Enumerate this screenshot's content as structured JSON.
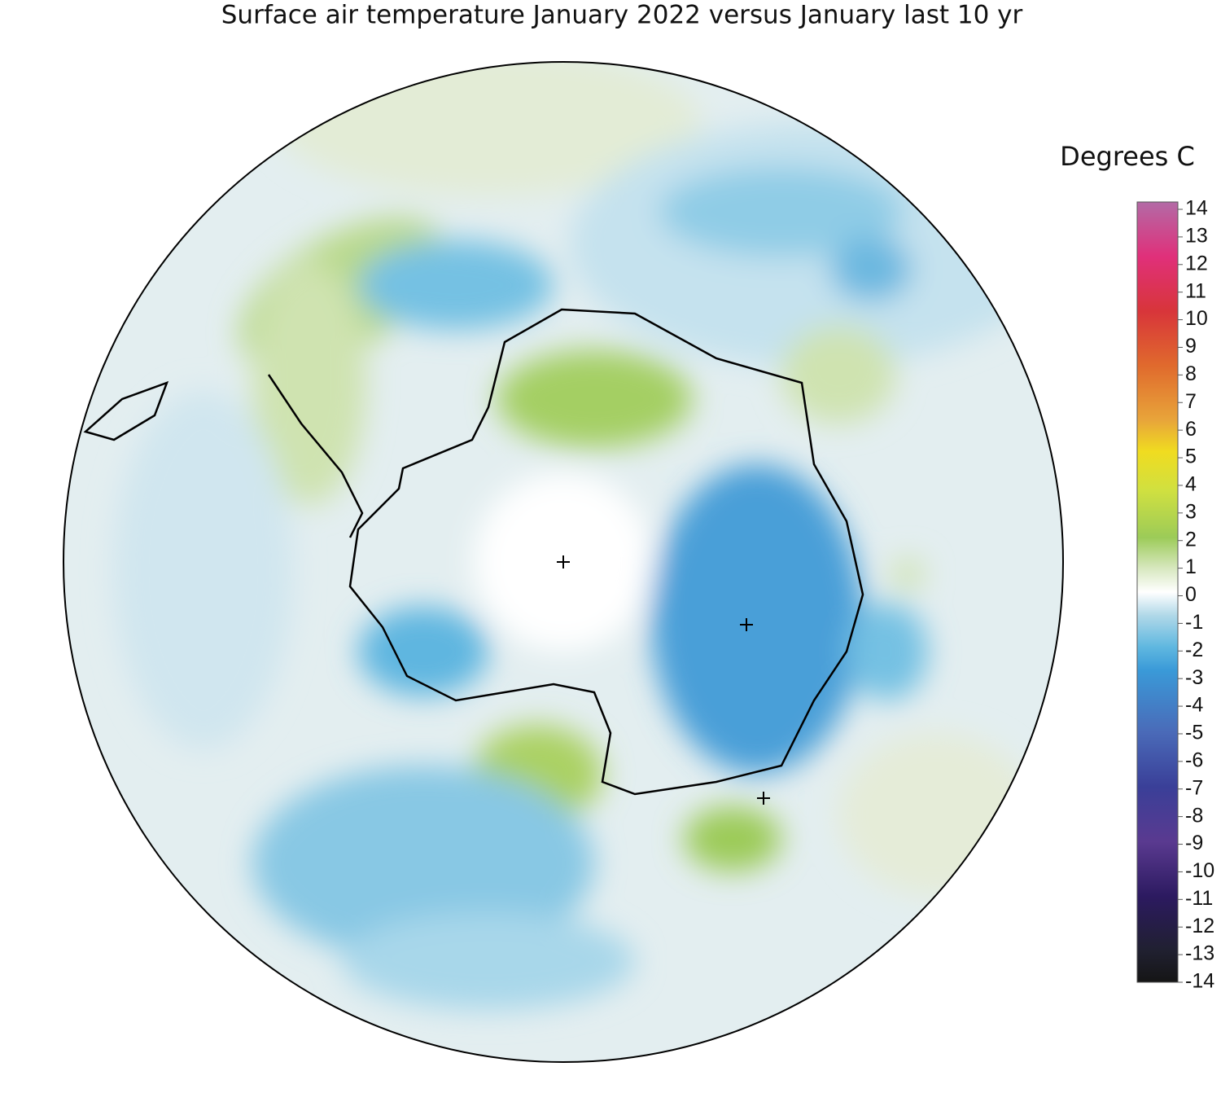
{
  "title": "Surface air temperature January 2022 versus January last 10 yr",
  "colorbar": {
    "label": "Degrees C",
    "lim": [
      -14,
      14
    ],
    "ticks": [
      14,
      13,
      12,
      11,
      10,
      9,
      8,
      7,
      6,
      5,
      4,
      3,
      2,
      1,
      0,
      -1,
      -2,
      -3,
      -4,
      -5,
      -6,
      -7,
      -8,
      -9,
      -10,
      -11,
      -12,
      -13,
      -14
    ]
  }
}
